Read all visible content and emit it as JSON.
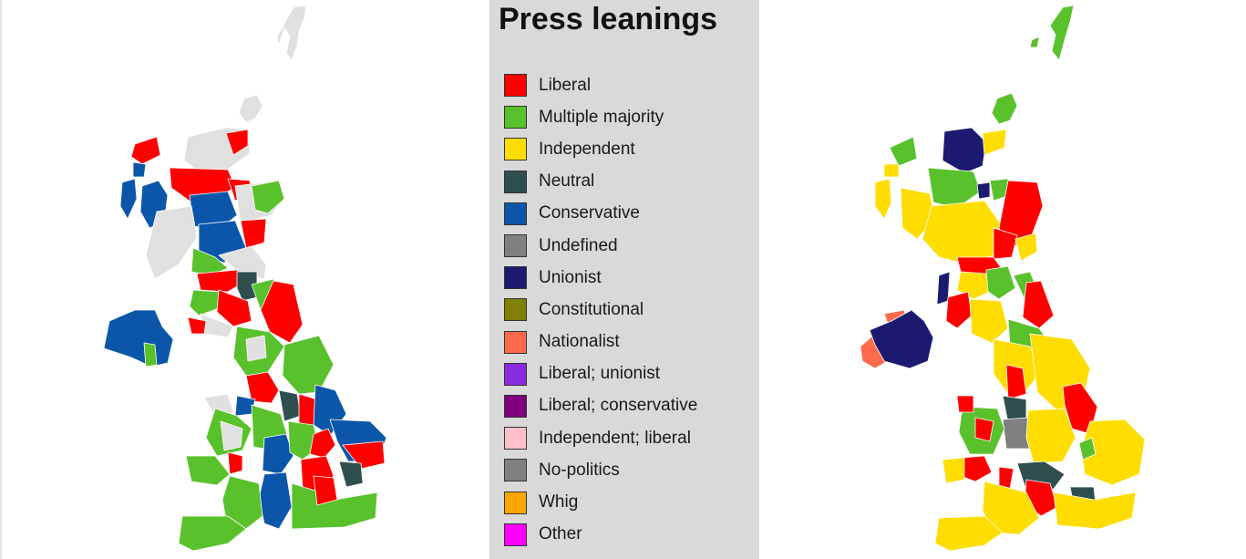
{
  "legend": {
    "title": "Press leanings",
    "items": [
      {
        "label": "Liberal",
        "color": "#ff0000"
      },
      {
        "label": "Multiple majority",
        "color": "#59c12c"
      },
      {
        "label": "Independent",
        "color": "#ffdd00"
      },
      {
        "label": "Neutral",
        "color": "#2f4f4f"
      },
      {
        "label": "Conservative",
        "color": "#0b56a8"
      },
      {
        "label": "Undefined",
        "color": "#808080"
      },
      {
        "label": "Unionist",
        "color": "#1b1a70"
      },
      {
        "label": "Constitutional",
        "color": "#7f7f00"
      },
      {
        "label": "Nationalist",
        "color": "#ff6a4d"
      },
      {
        "label": "Liberal; unionist",
        "color": "#8a2be2"
      },
      {
        "label": "Liberal; conservative",
        "color": "#800080"
      },
      {
        "label": "Independent; liberal",
        "color": "#ffc0cb"
      },
      {
        "label": "No-politics",
        "color": "#808080"
      },
      {
        "label": "Whig",
        "color": "#ffa500"
      },
      {
        "label": "Other",
        "color": "#ff00ff"
      }
    ]
  },
  "maps": {
    "no_data_color": "#e0e0e0"
  }
}
